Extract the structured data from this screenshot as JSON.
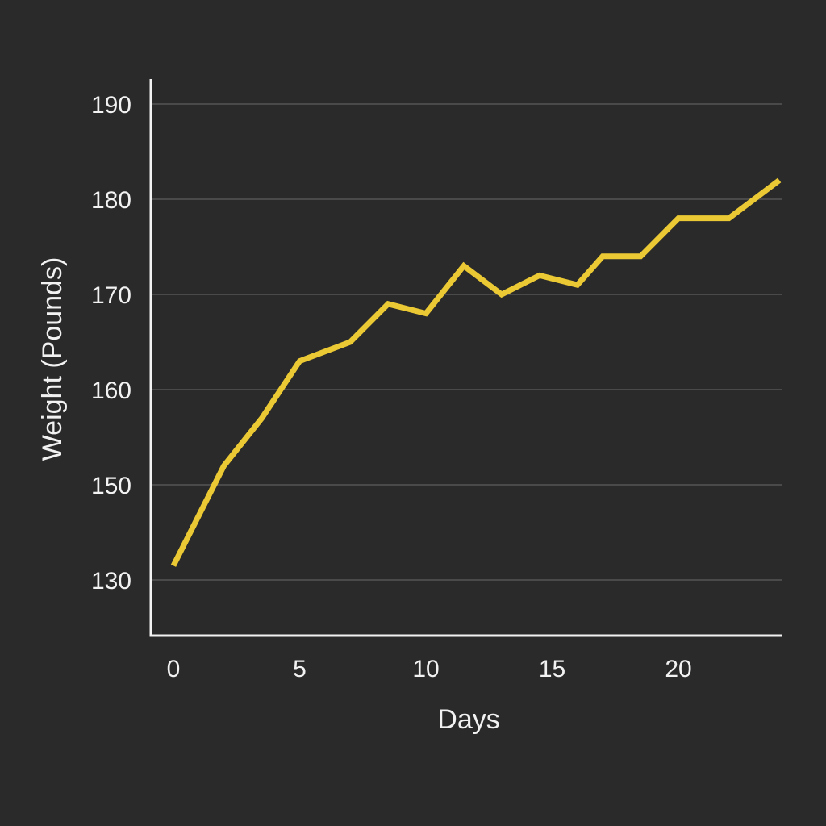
{
  "chart_data": {
    "type": "line",
    "title": "",
    "xlabel": "Days",
    "ylabel": "Weight (Pounds)",
    "y_ticks": [
      130,
      150,
      160,
      170,
      180,
      190
    ],
    "x_ticks": [
      0,
      5,
      10,
      15,
      20
    ],
    "grid": "horizontal",
    "colors": {
      "background": "#2a2a2a",
      "line": "#ebc934",
      "grid": "#4a4a4a",
      "axis": "#f2f2f2",
      "text": "#f2f2f2"
    },
    "series": [
      {
        "x": [
          0,
          2,
          3.5,
          5,
          7,
          8.5,
          10,
          11.5,
          13,
          14.5,
          16,
          17,
          18.5,
          20,
          22,
          24
        ],
        "values": [
          133,
          152,
          157,
          163,
          165,
          169,
          168,
          173,
          170,
          172,
          171,
          174,
          174,
          178,
          178,
          182
        ]
      }
    ]
  }
}
